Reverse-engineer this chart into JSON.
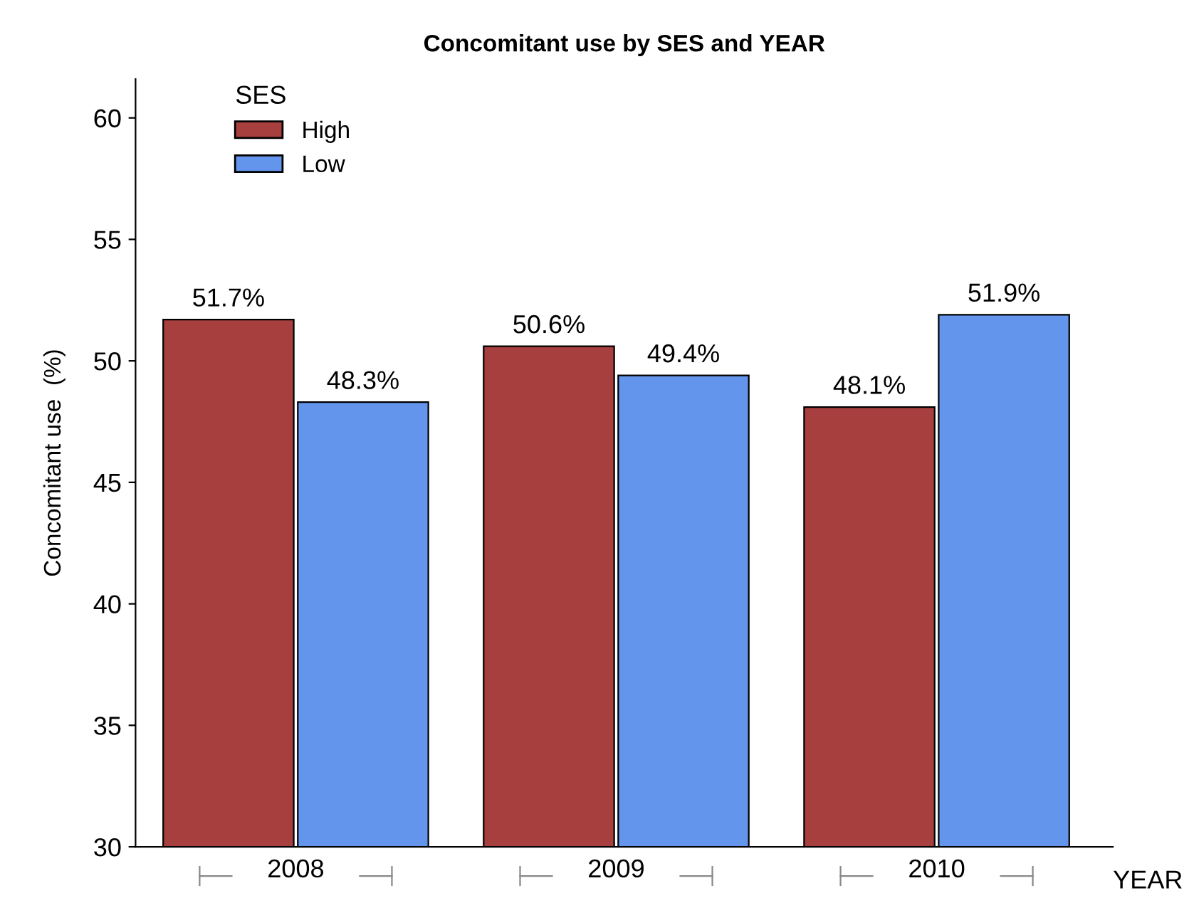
{
  "chart_data": {
    "type": "bar",
    "title": "Concomitant use by SES and YEAR",
    "xlabel": "YEAR",
    "ylabel": "Concomitant use  (%)",
    "legend_title": "SES",
    "categories": [
      "2008",
      "2009",
      "2010"
    ],
    "series": [
      {
        "name": "High",
        "color": "#a83f3f",
        "values": [
          51.7,
          50.6,
          48.1
        ],
        "value_labels": [
          "51.7%",
          "50.6%",
          "48.1%"
        ]
      },
      {
        "name": "Low",
        "color": "#6495ed",
        "values": [
          48.3,
          49.4,
          51.9
        ],
        "value_labels": [
          "48.3%",
          "49.4%",
          "51.9%"
        ]
      }
    ],
    "ylim": [
      30,
      61.6
    ],
    "yticks": [
      30,
      35,
      40,
      45,
      50,
      55,
      60
    ],
    "grid": false,
    "legend": "top left"
  }
}
